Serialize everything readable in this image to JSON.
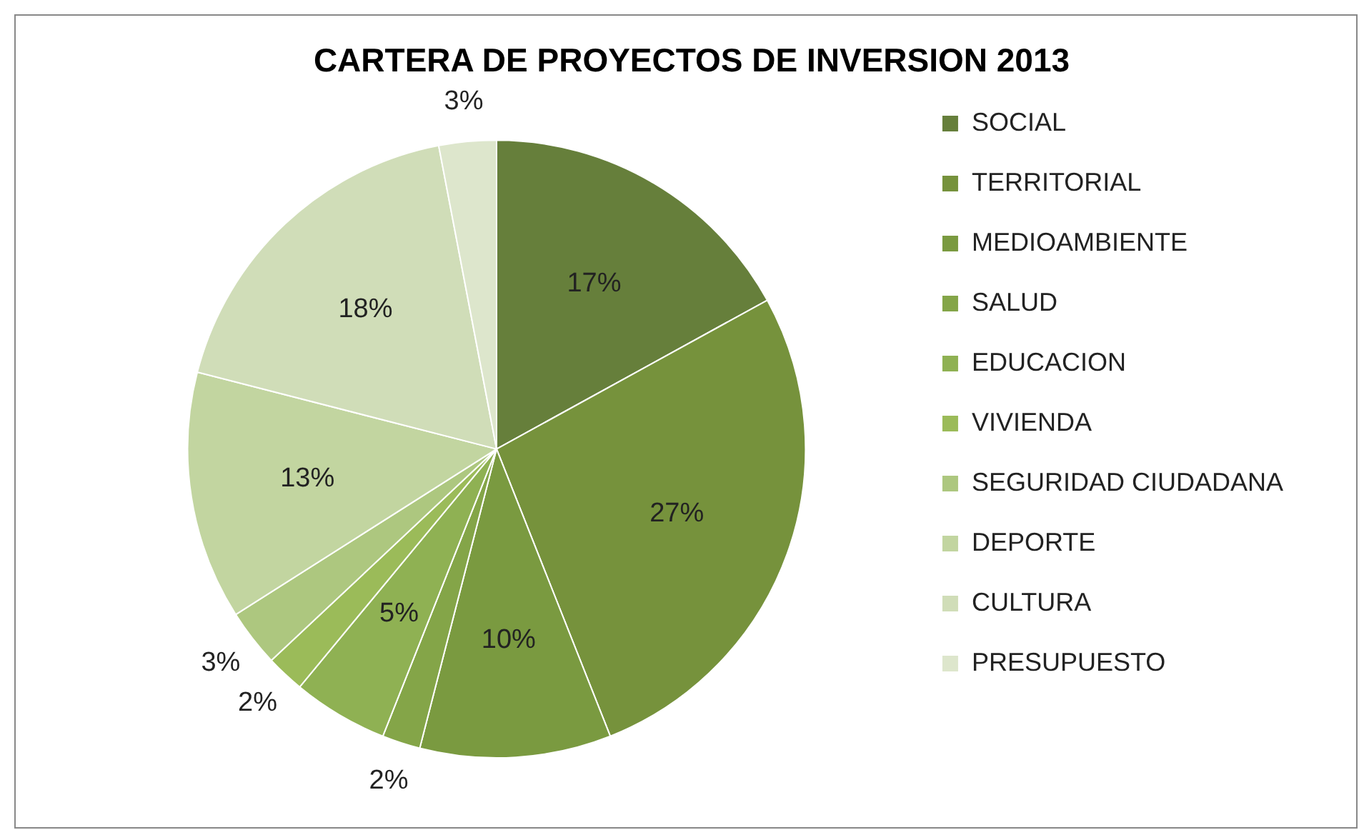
{
  "chart_data": {
    "type": "pie",
    "title": "CARTERA DE PROYECTOS DE INVERSION 2013",
    "categories": [
      "SOCIAL",
      "TERRITORIAL",
      "MEDIOAMBIENTE",
      "SALUD",
      "EDUCACION",
      "VIVIENDA",
      "SEGURIDAD CIUDADANA",
      "DEPORTE",
      "CULTURA",
      "PRESUPUESTO"
    ],
    "values": [
      17,
      27,
      10,
      2,
      5,
      2,
      3,
      13,
      18,
      3
    ],
    "value_labels": [
      "17%",
      "27%",
      "10%",
      "2%",
      "5%",
      "2%",
      "3%",
      "13%",
      "18%",
      "3%"
    ],
    "colors": [
      "#667f3b",
      "#76923c",
      "#7a9a40",
      "#84a548",
      "#8fb153",
      "#9bbb59",
      "#adc77f",
      "#c2d5a0",
      "#d0ddb8",
      "#dde6cc"
    ],
    "legend": "right"
  }
}
